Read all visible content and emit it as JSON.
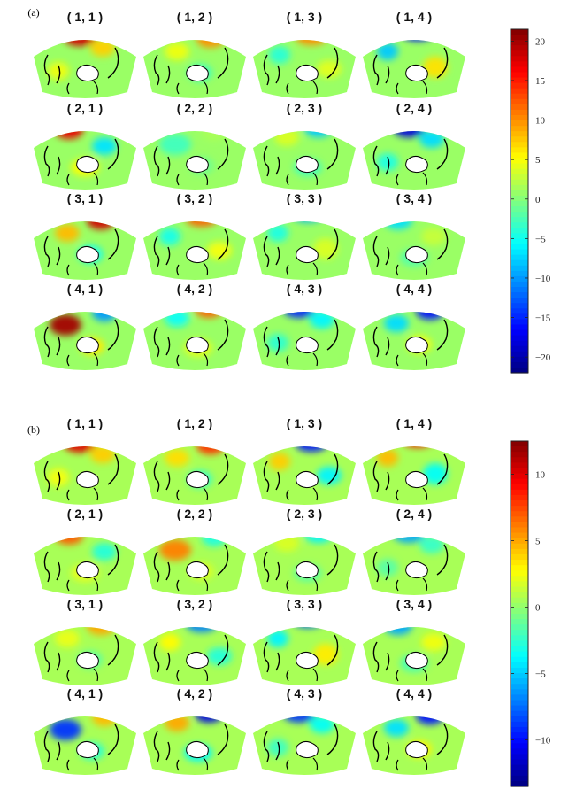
{
  "chart_data": [
    {
      "type": "heatmap",
      "panel_label": "(a)",
      "map_titles": [
        "( 1, 1 )",
        "( 1, 2 )",
        "( 1, 3 )",
        "( 1, 4 )",
        "( 2, 1 )",
        "( 2, 2 )",
        "( 2, 3 )",
        "( 2, 4 )",
        "( 3, 1 )",
        "( 3, 2 )",
        "( 3, 3 )",
        "( 3, 4 )",
        "( 4, 1 )",
        "( 4, 2 )",
        "( 4, 3 )",
        "( 4, 4 )"
      ],
      "colorbar": {
        "min": -22,
        "max": 21.5,
        "ticks": [
          20,
          15,
          10,
          5,
          0,
          -5,
          -10,
          -15,
          -20
        ],
        "tick_labels": [
          "20",
          "15",
          "10",
          "5",
          "0",
          "−5",
          "−10",
          "−15",
          "−20"
        ]
      },
      "peak_values": [
        18,
        10,
        10,
        -16,
        17,
        -3,
        -8,
        -18,
        18,
        12,
        -9,
        -7,
        20,
        12,
        -15,
        -16
      ]
    },
    {
      "type": "heatmap",
      "panel_label": "(b)",
      "map_titles": [
        "( 1, 1 )",
        "( 1, 2 )",
        "( 1, 3 )",
        "( 1, 4 )",
        "( 2, 1 )",
        "( 2, 2 )",
        "( 2, 3 )",
        "( 2, 4 )",
        "( 3, 1 )",
        "( 3, 2 )",
        "( 3, 3 )",
        "( 3, 4 )",
        "( 4, 1 )",
        "( 4, 2 )",
        "( 4, 3 )",
        "( 4, 4 )"
      ],
      "colorbar": {
        "min": -13.5,
        "max": 12.5,
        "ticks": [
          10,
          5,
          0,
          -5,
          -10
        ],
        "tick_labels": [
          "10",
          "5",
          "0",
          "−5",
          "−10"
        ]
      },
      "peak_values": [
        10,
        8,
        -10,
        9,
        7,
        6,
        -4,
        -6,
        5,
        -7,
        -8,
        -6,
        -9,
        -11,
        -9,
        -10
      ]
    }
  ]
}
